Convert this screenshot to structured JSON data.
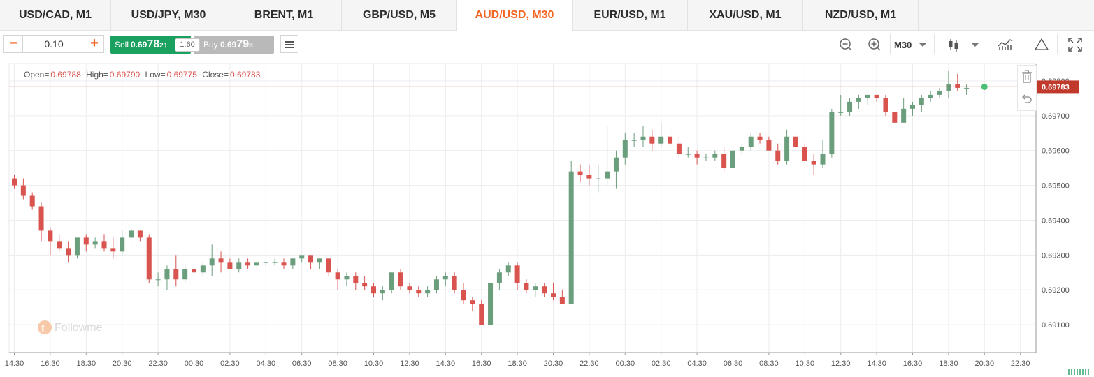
{
  "tabs": [
    {
      "label": "USD/CAD, M1",
      "active": false
    },
    {
      "label": "USD/JPY, M30",
      "active": false
    },
    {
      "label": "BRENT, M1",
      "active": false
    },
    {
      "label": "GBP/USD, M5",
      "active": false
    },
    {
      "label": "AUD/USD, M30",
      "active": true
    },
    {
      "label": "EUR/USD, M1",
      "active": false
    },
    {
      "label": "XAU/USD, M1",
      "active": false
    },
    {
      "label": "NZD/USD, M1",
      "active": false
    }
  ],
  "toolbar": {
    "lot_minus": "−",
    "lot_value": "0.10",
    "lot_plus": "+",
    "sell": {
      "label": "Sell",
      "price_prefix": "0.69",
      "price_big": "78",
      "price_pip": "2",
      "arrow": "↑"
    },
    "spread": "1.60",
    "buy": {
      "label": "Buy",
      "price_prefix": "0.69",
      "price_big": "79",
      "price_pip": "8"
    },
    "timeframe": "M30",
    "icons": [
      "menu-icon",
      "zoom-out-icon",
      "zoom-in-icon",
      "candlestick-icon",
      "indicators-icon",
      "triangle-icon",
      "fullscreen-icon",
      "trash-icon",
      "undo-icon"
    ]
  },
  "ohlc_info": {
    "open_label": "Open=",
    "open": "0.69788",
    "high_label": "High=",
    "high": "0.69790",
    "low_label": "Low=",
    "low": "0.69775",
    "close_label": "Close=",
    "close": "0.69783"
  },
  "watermark": "Followme",
  "colors": {
    "up": "#6b9e7c",
    "down": "#d9534f",
    "accent": "#f26522",
    "sell": "#1aa05f",
    "buy": "#b9b9b9",
    "price_line": "#c0392b",
    "live_dot": "#4bbf73"
  },
  "chart_data": {
    "type": "candlestick",
    "symbol": "AUD/USD",
    "timeframe": "M30",
    "ylim": [
      0.6902,
      0.6985
    ],
    "y_ticks": [
      "0.69100",
      "0.69200",
      "0.69300",
      "0.69400",
      "0.69500",
      "0.69600",
      "0.69700",
      "0.69800"
    ],
    "x_ticks": [
      "14:30",
      "16:30",
      "18:30",
      "20:30",
      "22:30",
      "00:30",
      "02:30",
      "04:30",
      "06:30",
      "08:30",
      "10:30",
      "12:30",
      "14:30",
      "16:30",
      "18:30",
      "20:30",
      "22:30",
      "00:30",
      "02:30",
      "04:30",
      "06:30",
      "08:30",
      "10:30",
      "12:30",
      "14:30",
      "16:30",
      "18:30",
      "20:30",
      "22:30"
    ],
    "bars_per_tick": 4,
    "current_price": "0.69783",
    "candles": [
      [
        0.6952,
        0.6953,
        0.6949,
        0.695
      ],
      [
        0.695,
        0.6952,
        0.6946,
        0.6947
      ],
      [
        0.6947,
        0.6948,
        0.6943,
        0.6944
      ],
      [
        0.6944,
        0.6945,
        0.6934,
        0.6937
      ],
      [
        0.6937,
        0.6938,
        0.693,
        0.6934
      ],
      [
        0.6934,
        0.6936,
        0.6931,
        0.6932
      ],
      [
        0.6932,
        0.6934,
        0.6928,
        0.693
      ],
      [
        0.693,
        0.6935,
        0.6929,
        0.6935
      ],
      [
        0.6935,
        0.6936,
        0.6931,
        0.6933
      ],
      [
        0.6933,
        0.6935,
        0.6932,
        0.6934
      ],
      [
        0.6934,
        0.6936,
        0.6931,
        0.6932
      ],
      [
        0.6932,
        0.6935,
        0.6929,
        0.6931
      ],
      [
        0.6931,
        0.6937,
        0.693,
        0.6935
      ],
      [
        0.6935,
        0.6938,
        0.6933,
        0.6937
      ],
      [
        0.6937,
        0.6937,
        0.6934,
        0.6935
      ],
      [
        0.6935,
        0.6936,
        0.6922,
        0.6923
      ],
      [
        0.6923,
        0.6925,
        0.6921,
        0.6923
      ],
      [
        0.6923,
        0.6927,
        0.692,
        0.6926
      ],
      [
        0.6926,
        0.693,
        0.6921,
        0.6923
      ],
      [
        0.6923,
        0.6927,
        0.6922,
        0.6926
      ],
      [
        0.6926,
        0.6928,
        0.6921,
        0.6925
      ],
      [
        0.6925,
        0.6928,
        0.6924,
        0.6927
      ],
      [
        0.6927,
        0.6933,
        0.6924,
        0.6929
      ],
      [
        0.6929,
        0.6931,
        0.6925,
        0.6928
      ],
      [
        0.6928,
        0.6929,
        0.6926,
        0.6926
      ],
      [
        0.6926,
        0.6929,
        0.6925,
        0.6928
      ],
      [
        0.6928,
        0.6929,
        0.6926,
        0.6927
      ],
      [
        0.6927,
        0.6928,
        0.6926,
        0.6928
      ],
      [
        0.6928,
        0.6928,
        0.6927,
        0.6928
      ],
      [
        0.6928,
        0.6929,
        0.6927,
        0.6928
      ],
      [
        0.6928,
        0.6929,
        0.6926,
        0.6927
      ],
      [
        0.6927,
        0.6929,
        0.6926,
        0.6929
      ],
      [
        0.6929,
        0.693,
        0.6928,
        0.693
      ],
      [
        0.693,
        0.693,
        0.6926,
        0.6928
      ],
      [
        0.6928,
        0.6929,
        0.6926,
        0.6929
      ],
      [
        0.6929,
        0.6929,
        0.6924,
        0.6925
      ],
      [
        0.6925,
        0.6926,
        0.692,
        0.6923
      ],
      [
        0.6923,
        0.6925,
        0.6921,
        0.6924
      ],
      [
        0.6924,
        0.6925,
        0.692,
        0.6922
      ],
      [
        0.6922,
        0.6924,
        0.692,
        0.6921
      ],
      [
        0.6921,
        0.6922,
        0.6918,
        0.6919
      ],
      [
        0.6919,
        0.6921,
        0.6917,
        0.692
      ],
      [
        0.692,
        0.6925,
        0.6919,
        0.6925
      ],
      [
        0.6925,
        0.6926,
        0.692,
        0.6921
      ],
      [
        0.6921,
        0.6922,
        0.6919,
        0.692
      ],
      [
        0.692,
        0.6921,
        0.6918,
        0.6919
      ],
      [
        0.6919,
        0.6921,
        0.6918,
        0.692
      ],
      [
        0.692,
        0.6924,
        0.6919,
        0.6923
      ],
      [
        0.6923,
        0.6925,
        0.6921,
        0.6924
      ],
      [
        0.6924,
        0.6925,
        0.6919,
        0.692
      ],
      [
        0.692,
        0.6922,
        0.6916,
        0.6917
      ],
      [
        0.6917,
        0.6918,
        0.6914,
        0.6916
      ],
      [
        0.6916,
        0.6917,
        0.691,
        0.691
      ],
      [
        0.691,
        0.6922,
        0.691,
        0.6922
      ],
      [
        0.6922,
        0.6926,
        0.692,
        0.6925
      ],
      [
        0.6925,
        0.6928,
        0.6924,
        0.6927
      ],
      [
        0.6927,
        0.6928,
        0.692,
        0.6922
      ],
      [
        0.6922,
        0.6923,
        0.6919,
        0.692
      ],
      [
        0.692,
        0.6922,
        0.6918,
        0.6921
      ],
      [
        0.6921,
        0.6922,
        0.6918,
        0.6919
      ],
      [
        0.6919,
        0.6922,
        0.6917,
        0.6918
      ],
      [
        0.6918,
        0.692,
        0.6916,
        0.6916
      ],
      [
        0.6916,
        0.6957,
        0.6916,
        0.6954
      ],
      [
        0.6954,
        0.6956,
        0.6951,
        0.6953
      ],
      [
        0.6953,
        0.6956,
        0.695,
        0.6952
      ],
      [
        0.6952,
        0.6956,
        0.6948,
        0.6952
      ],
      [
        0.6952,
        0.6967,
        0.695,
        0.6954
      ],
      [
        0.6954,
        0.696,
        0.6949,
        0.6958
      ],
      [
        0.6958,
        0.6965,
        0.6956,
        0.6963
      ],
      [
        0.6963,
        0.6965,
        0.6961,
        0.6963
      ],
      [
        0.6963,
        0.6967,
        0.6961,
        0.6964
      ],
      [
        0.6964,
        0.6966,
        0.696,
        0.6962
      ],
      [
        0.6962,
        0.6968,
        0.6961,
        0.6964
      ],
      [
        0.6964,
        0.6966,
        0.6961,
        0.6962
      ],
      [
        0.6962,
        0.6964,
        0.6958,
        0.6959
      ],
      [
        0.6959,
        0.6961,
        0.6958,
        0.6959
      ],
      [
        0.6959,
        0.696,
        0.6956,
        0.6958
      ],
      [
        0.6958,
        0.6959,
        0.6957,
        0.6958
      ],
      [
        0.6958,
        0.696,
        0.6957,
        0.6959
      ],
      [
        0.6959,
        0.6961,
        0.6954,
        0.6955
      ],
      [
        0.6955,
        0.6961,
        0.6954,
        0.696
      ],
      [
        0.696,
        0.6962,
        0.6959,
        0.6961
      ],
      [
        0.6961,
        0.6965,
        0.696,
        0.6964
      ],
      [
        0.6964,
        0.6965,
        0.6962,
        0.6963
      ],
      [
        0.6963,
        0.6964,
        0.696,
        0.696
      ],
      [
        0.696,
        0.6962,
        0.6956,
        0.6957
      ],
      [
        0.6957,
        0.6966,
        0.6956,
        0.6964
      ],
      [
        0.6964,
        0.6965,
        0.696,
        0.6961
      ],
      [
        0.6961,
        0.6962,
        0.6957,
        0.6957
      ],
      [
        0.6957,
        0.6959,
        0.6953,
        0.6956
      ],
      [
        0.6956,
        0.6963,
        0.6955,
        0.6959
      ],
      [
        0.6959,
        0.6972,
        0.6958,
        0.6971
      ],
      [
        0.6971,
        0.6976,
        0.697,
        0.6971
      ],
      [
        0.6971,
        0.6975,
        0.697,
        0.6974
      ],
      [
        0.6974,
        0.6976,
        0.6972,
        0.6975
      ],
      [
        0.6975,
        0.6976,
        0.6973,
        0.6976
      ],
      [
        0.6976,
        0.6976,
        0.6974,
        0.6975
      ],
      [
        0.6975,
        0.6976,
        0.697,
        0.6971
      ],
      [
        0.6971,
        0.6971,
        0.6968,
        0.6968
      ],
      [
        0.6968,
        0.6975,
        0.6968,
        0.6972
      ],
      [
        0.6972,
        0.6974,
        0.697,
        0.6973
      ],
      [
        0.6973,
        0.6976,
        0.6971,
        0.6975
      ],
      [
        0.6975,
        0.6977,
        0.6974,
        0.6976
      ],
      [
        0.6976,
        0.6978,
        0.6975,
        0.6977
      ],
      [
        0.6977,
        0.6983,
        0.6975,
        0.6979
      ],
      [
        0.6979,
        0.6982,
        0.6977,
        0.6978
      ],
      [
        0.6978,
        0.6979,
        0.6976,
        0.6978
      ]
    ],
    "y_label_format": "5 decimals"
  }
}
